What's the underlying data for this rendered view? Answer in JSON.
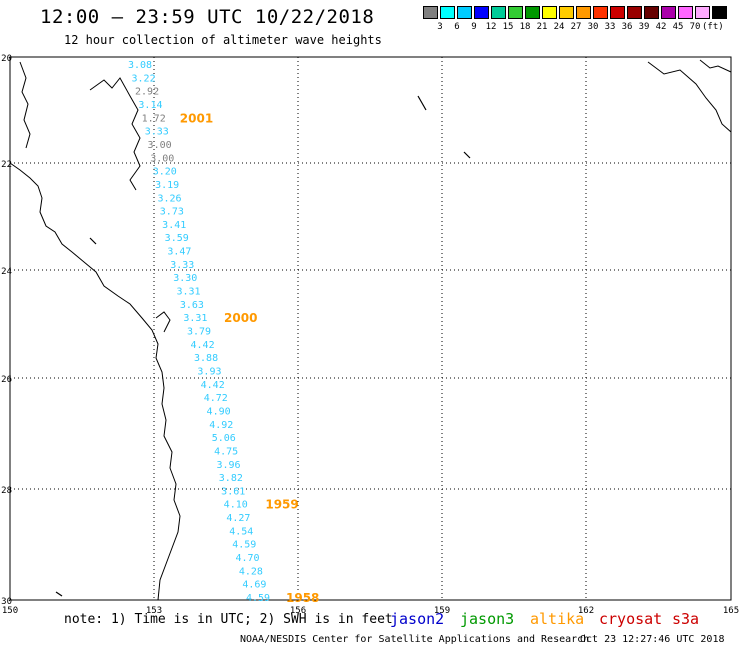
{
  "header": {
    "title": "12:00 – 23:59 UTC 10/22/2018",
    "subtitle": "12 hour collection of altimeter wave heights"
  },
  "colorbar": {
    "colors": [
      "#808080",
      "#00ffff",
      "#00ccff",
      "#0000ff",
      "#00cc99",
      "#33cc33",
      "#009900",
      "#ffff00",
      "#ffcc00",
      "#ff9900",
      "#ff3300",
      "#cc0000",
      "#990000",
      "#660000",
      "#aa00aa",
      "#ff66ff",
      "#ffaaff",
      "#000000"
    ],
    "labels": [
      "3",
      "6",
      "9",
      "12",
      "15",
      "18",
      "21",
      "24",
      "27",
      "30",
      "33",
      "36",
      "39",
      "42",
      "45",
      "70"
    ],
    "unit": "(ft)"
  },
  "axes": {
    "lat_labels": [
      "-20",
      "-22",
      "-24",
      "-26",
      "-28",
      "-30"
    ],
    "lon_labels": [
      "150",
      "153",
      "156",
      "159",
      "162",
      "165"
    ]
  },
  "track": {
    "points": [
      {
        "v": "3.08",
        "c": "#33ccff"
      },
      {
        "v": "3.22",
        "c": "#33ccff"
      },
      {
        "v": "2.92",
        "c": "#808080"
      },
      {
        "v": "3.14",
        "c": "#33ccff"
      },
      {
        "v": "1.72",
        "c": "#808080"
      },
      {
        "v": "3.33",
        "c": "#33ccff"
      },
      {
        "v": "3.00",
        "c": "#808080"
      },
      {
        "v": "3.00",
        "c": "#808080"
      },
      {
        "v": "3.20",
        "c": "#33ccff"
      },
      {
        "v": "3.19",
        "c": "#33ccff"
      },
      {
        "v": "3.26",
        "c": "#33ccff"
      },
      {
        "v": "3.73",
        "c": "#33ccff"
      },
      {
        "v": "3.41",
        "c": "#33ccff"
      },
      {
        "v": "3.59",
        "c": "#33ccff"
      },
      {
        "v": "3.47",
        "c": "#33ccff"
      },
      {
        "v": "3.33",
        "c": "#33ccff"
      },
      {
        "v": "3.30",
        "c": "#33ccff"
      },
      {
        "v": "3.31",
        "c": "#33ccff"
      },
      {
        "v": "3.63",
        "c": "#33ccff"
      },
      {
        "v": "3.31",
        "c": "#33ccff"
      },
      {
        "v": "3.79",
        "c": "#33ccff"
      },
      {
        "v": "4.42",
        "c": "#33ccff"
      },
      {
        "v": "3.88",
        "c": "#33ccff"
      },
      {
        "v": "3.93",
        "c": "#33ccff"
      },
      {
        "v": "4.42",
        "c": "#33ccff"
      },
      {
        "v": "4.72",
        "c": "#33ccff"
      },
      {
        "v": "4.90",
        "c": "#33ccff"
      },
      {
        "v": "4.92",
        "c": "#33ccff"
      },
      {
        "v": "5.06",
        "c": "#33ccff"
      },
      {
        "v": "4.75",
        "c": "#33ccff"
      },
      {
        "v": "3.96",
        "c": "#33ccff"
      },
      {
        "v": "3.82",
        "c": "#33ccff"
      },
      {
        "v": "3.61",
        "c": "#33ccff"
      },
      {
        "v": "4.10",
        "c": "#33ccff"
      },
      {
        "v": "4.27",
        "c": "#33ccff"
      },
      {
        "v": "4.54",
        "c": "#33ccff"
      },
      {
        "v": "4.59",
        "c": "#33ccff"
      },
      {
        "v": "4.70",
        "c": "#33ccff"
      },
      {
        "v": "4.28",
        "c": "#33ccff"
      },
      {
        "v": "4.69",
        "c": "#33ccff"
      },
      {
        "v": "4.59",
        "c": "#33ccff"
      }
    ],
    "times": [
      "2001",
      "2000",
      "1959",
      "1958"
    ],
    "time_color": "#ff9900"
  },
  "footer": {
    "note": "note: 1) Time is in UTC; 2) SWH is in feet",
    "credit": "NOAA/NESDIS Center for Satellite Applications and Research",
    "timestamp": "Oct 23 12:27:46 UTC 2018"
  },
  "satellites": [
    {
      "name": "jason2",
      "color": "#0000cc"
    },
    {
      "name": "jason3",
      "color": "#009900"
    },
    {
      "name": "altika",
      "color": "#ff9900"
    },
    {
      "name": "cryosat",
      "color": "#cc0000"
    },
    {
      "name": "s3a",
      "color": "#cc0000"
    }
  ]
}
